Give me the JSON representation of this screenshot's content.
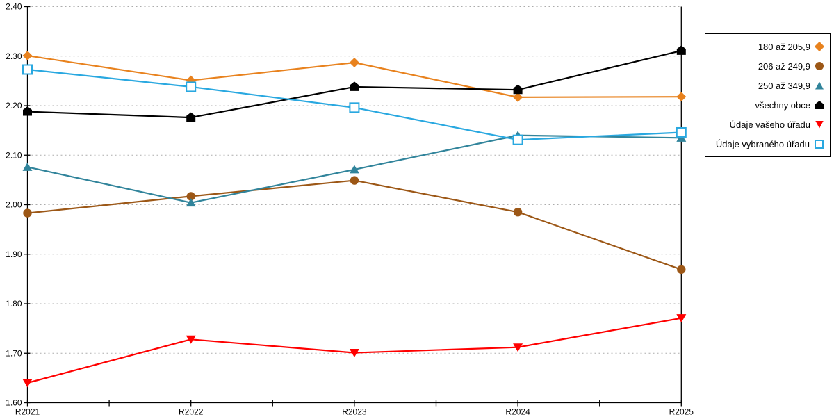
{
  "chart_data": {
    "type": "line",
    "title": "",
    "xlabel": "",
    "ylabel": "",
    "categories": [
      "R2021",
      "R2022",
      "R2023",
      "R2024",
      "R2025"
    ],
    "series": [
      {
        "name": "180 až 205,9",
        "marker": "diamond",
        "color": "#E8821E",
        "values": [
          2.301,
          2.251,
          2.287,
          2.217,
          2.218
        ]
      },
      {
        "name": "206 až 249,9",
        "marker": "circle",
        "color": "#9C5716",
        "values": [
          1.983,
          2.017,
          2.049,
          1.985,
          1.869
        ]
      },
      {
        "name": "250 až 349,9",
        "marker": "triangle-up",
        "color": "#31849B",
        "values": [
          2.076,
          2.004,
          2.071,
          2.14,
          2.135
        ]
      },
      {
        "name": "všechny obce",
        "marker": "pentagon",
        "color": "#000000",
        "values": [
          2.188,
          2.176,
          2.238,
          2.232,
          2.311
        ]
      },
      {
        "name": "Údaje vašeho úřadu",
        "marker": "triangle-down",
        "color": "#FF0000",
        "values": [
          1.64,
          1.728,
          1.701,
          1.712,
          1.771
        ]
      },
      {
        "name": "Údaje vybraného úřadu",
        "marker": "square-open",
        "color": "#29A8E0",
        "values": [
          2.273,
          2.238,
          2.196,
          2.131,
          2.146
        ]
      }
    ],
    "ylim": [
      1.6,
      2.4
    ],
    "ytick_step": 0.1,
    "y_tick_labels": [
      "2.40",
      "2.30",
      "2.20",
      "2.10",
      "2.00",
      "1.90",
      "1.80",
      "1.70",
      "1.60"
    ],
    "grid": "horizontal-dotted",
    "grid_color": "#ABABAB",
    "axis_color": "#000000",
    "legend_position": "top-right"
  }
}
